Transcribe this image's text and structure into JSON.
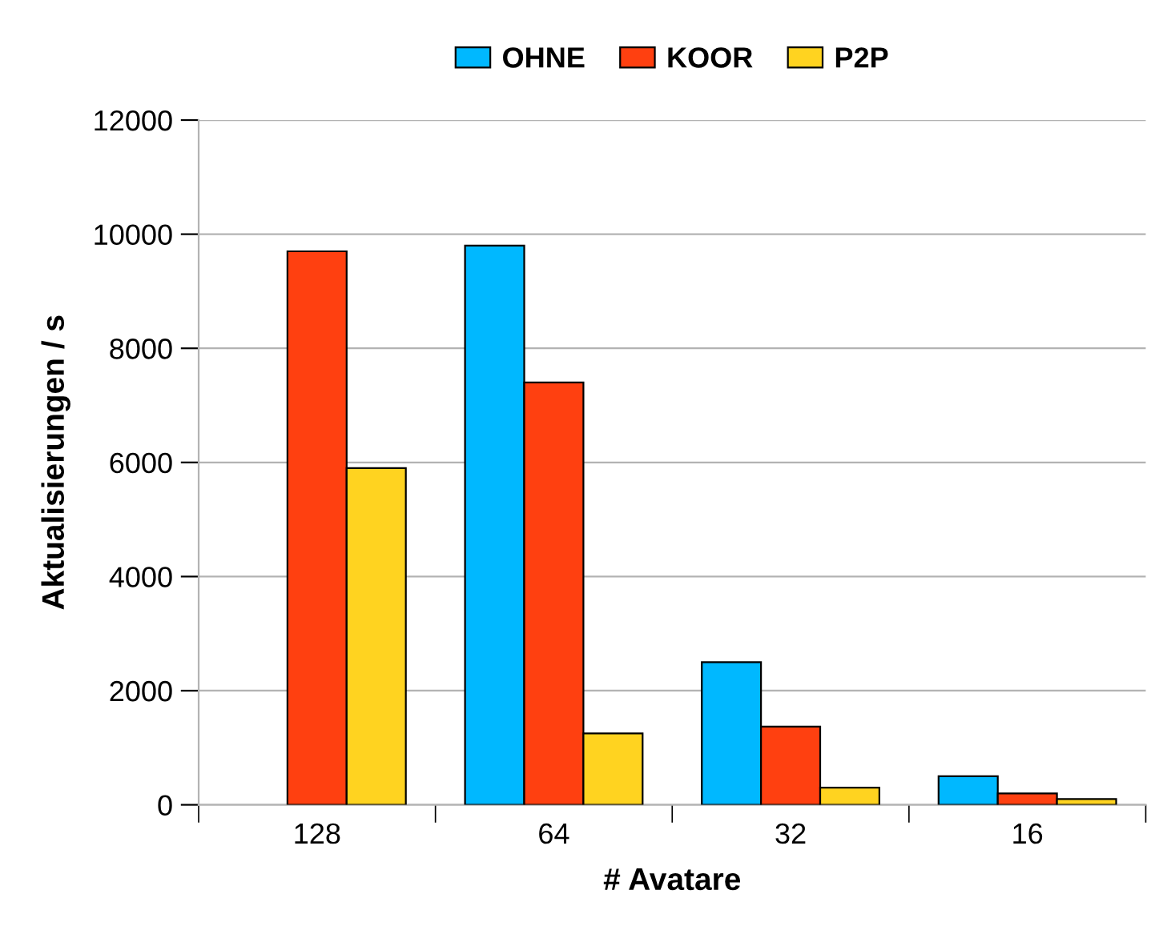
{
  "chart_data": {
    "type": "bar",
    "xlabel": "# Avatare",
    "ylabel": "Aktualisierungen / s",
    "categories": [
      "128",
      "64",
      "32",
      "16"
    ],
    "series": [
      {
        "name": "OHNE",
        "color": "#00b8ff",
        "values": [
          null,
          9800,
          2500,
          500
        ]
      },
      {
        "name": "KOOR",
        "color": "#ff4010",
        "values": [
          9700,
          7400,
          1370,
          200
        ]
      },
      {
        "name": "P2P",
        "color": "#ffd320",
        "values": [
          5900,
          1250,
          300,
          100
        ]
      }
    ],
    "ylim": [
      0,
      12000
    ],
    "yticks": [
      0,
      2000,
      4000,
      6000,
      8000,
      10000,
      12000
    ],
    "grid": "y",
    "legend": "top"
  }
}
